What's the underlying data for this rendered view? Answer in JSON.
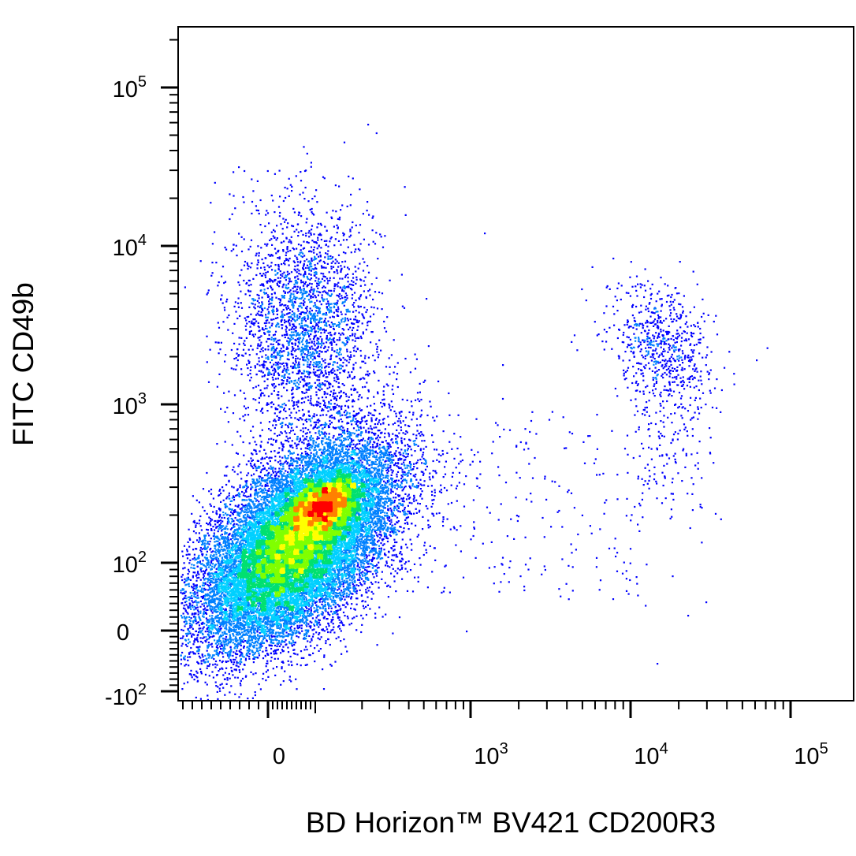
{
  "chart_data": {
    "type": "scatter",
    "subtype": "flow-cytometry-density-dot-plot",
    "xlabel": "BD Horizon™ BV421 CD200R3",
    "ylabel": "FITC CD49b",
    "x_scale": "biexponential",
    "y_scale": "biexponential",
    "x_ticks": [
      {
        "base": "0",
        "exp": ""
      },
      {
        "base": "10",
        "exp": "3"
      },
      {
        "base": "10",
        "exp": "4"
      },
      {
        "base": "10",
        "exp": "5"
      }
    ],
    "y_ticks": [
      {
        "base": "-10",
        "exp": "2"
      },
      {
        "base": "0",
        "exp": ""
      },
      {
        "base": "10",
        "exp": "2"
      },
      {
        "base": "10",
        "exp": "3"
      },
      {
        "base": "10",
        "exp": "4"
      },
      {
        "base": "10",
        "exp": "5"
      }
    ],
    "density_colors": [
      "#0000ff",
      "#0080ff",
      "#00d0ff",
      "#00e070",
      "#80ff00",
      "#ffff00",
      "#ff8000",
      "#ff0000"
    ],
    "populations": [
      {
        "x_center": 0,
        "y_center": 180,
        "note": "main dense population, CD200R3 negative, CD49b low"
      },
      {
        "x_center": 0,
        "y_center": 4000,
        "note": "CD200R3 negative, CD49b high"
      },
      {
        "x_center": 15000,
        "y_center": 2500,
        "note": "CD200R3 positive, CD49b high"
      }
    ]
  }
}
